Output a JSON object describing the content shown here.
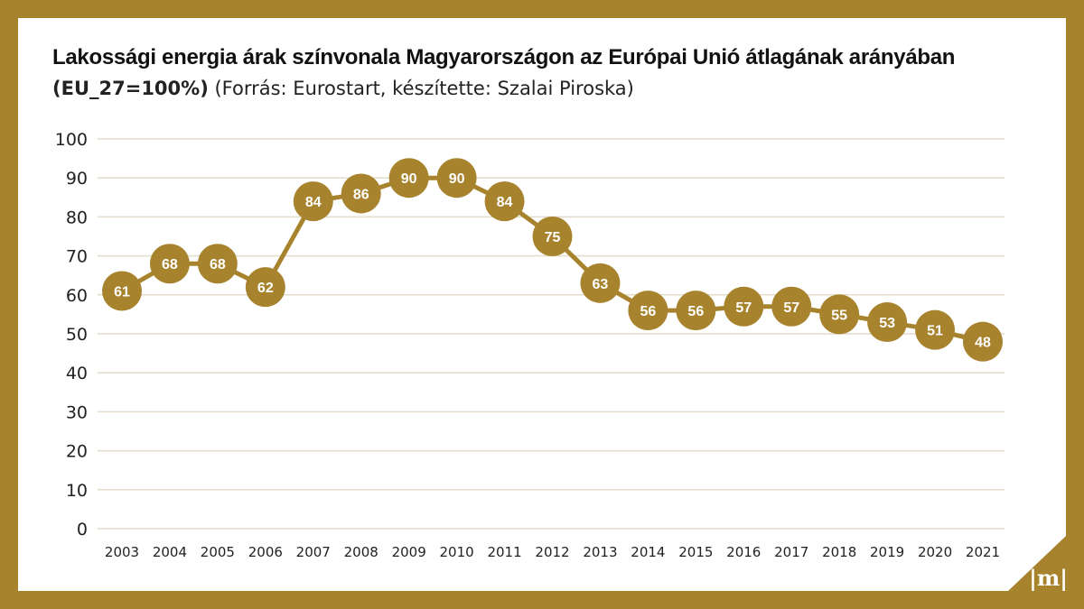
{
  "header": {
    "title": "Lakossági energia árak színvonala Magyarországon az Európai Unió átlagának arányában",
    "subtitle_bold": "(EU_27=100%)",
    "subtitle_rest": " (Forrás: Eurostart, készítette: Szalai Piroska)"
  },
  "logo": {
    "text": "|m|"
  },
  "colors": {
    "frame": "#a8832e",
    "accent": "#a8832e",
    "grid": "#e3dccb",
    "label": "#ffffff"
  },
  "chart_data": {
    "type": "line",
    "title": "Lakossági energia árak színvonala Magyarországon az Európai Unió átlagának arányában",
    "subtitle": "(EU_27=100%) (Forrás: Eurostart, készítette: Szalai Piroska)",
    "xlabel": "",
    "ylabel": "",
    "ylim": [
      0,
      100
    ],
    "yticks": [
      0,
      10,
      20,
      30,
      40,
      50,
      60,
      70,
      80,
      90,
      100
    ],
    "grid": true,
    "legend": "none",
    "x": [
      "2003",
      "2004",
      "2005",
      "2006",
      "2007",
      "2008",
      "2009",
      "2010",
      "2011",
      "2012",
      "2013",
      "2014",
      "2015",
      "2016",
      "2017",
      "2018",
      "2019",
      "2020",
      "2021"
    ],
    "series": [
      {
        "values": [
          61,
          68,
          68,
          62,
          84,
          86,
          90,
          90,
          84,
          75,
          63,
          56,
          56,
          57,
          57,
          55,
          53,
          51,
          48
        ]
      }
    ]
  }
}
